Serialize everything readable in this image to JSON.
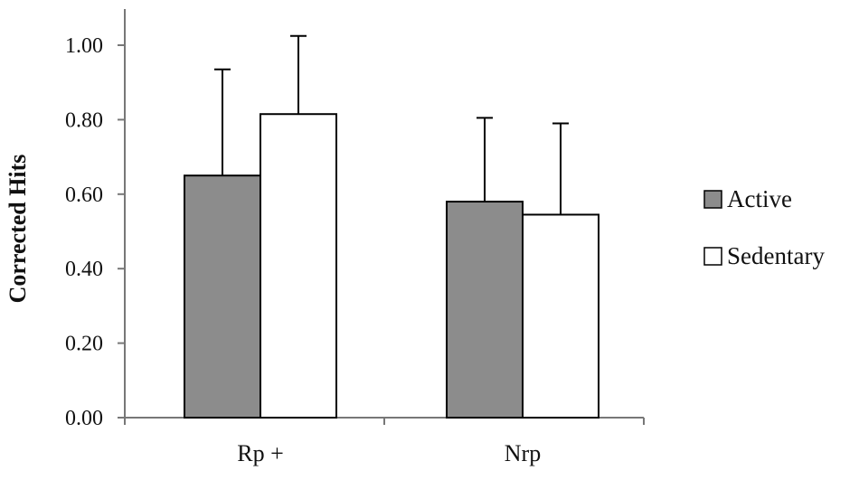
{
  "chart_data": {
    "type": "bar",
    "categories": [
      "Rp +",
      "Nrp"
    ],
    "series": [
      {
        "name": "Active",
        "values": [
          0.65,
          0.58
        ],
        "errors": [
          0.285,
          0.225
        ],
        "color": "#8c8c8c"
      },
      {
        "name": "Sedentary",
        "values": [
          0.815,
          0.545
        ],
        "errors": [
          0.21,
          0.245
        ],
        "color": "#ffffff"
      }
    ],
    "ylabel": "Corrected Hits",
    "ylim": [
      0,
      1.1
    ],
    "yticks": [
      "0.00",
      "0.20",
      "0.40",
      "0.60",
      "0.80",
      "1.00"
    ],
    "grid": false,
    "legend": "right"
  }
}
